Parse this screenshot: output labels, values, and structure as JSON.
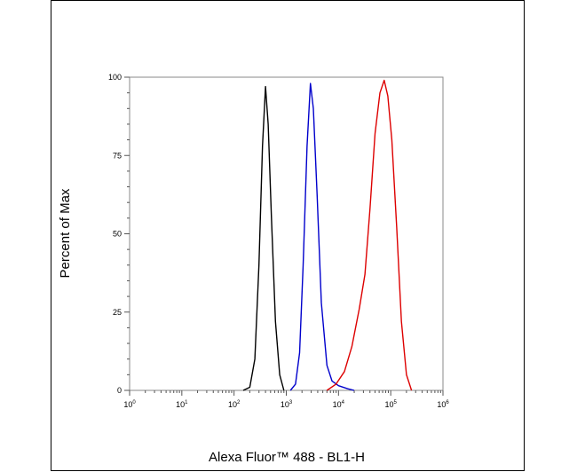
{
  "chart_data": {
    "type": "line",
    "title": "",
    "xlabel": "Alexa Fluor™ 488 - BL1-H",
    "ylabel": "Percent of Max",
    "x_scale": "log",
    "xlim": [
      1,
      1000000
    ],
    "ylim": [
      0,
      100
    ],
    "x_tick_labels": [
      {
        "value": 1,
        "base": "10",
        "exp": "0"
      },
      {
        "value": 10,
        "base": "10",
        "exp": "1"
      },
      {
        "value": 100,
        "base": "10",
        "exp": "2"
      },
      {
        "value": 1000,
        "base": "10",
        "exp": "3"
      },
      {
        "value": 10000,
        "base": "10",
        "exp": "4"
      },
      {
        "value": 100000,
        "base": "10",
        "exp": "5"
      },
      {
        "value": 1000000,
        "base": "10",
        "exp": "6"
      }
    ],
    "y_ticks": [
      0,
      25,
      50,
      75,
      100
    ],
    "grid": false,
    "legend": "none",
    "series": [
      {
        "color": "#000000",
        "points": [
          [
            150,
            0
          ],
          [
            200,
            1
          ],
          [
            250,
            10
          ],
          [
            300,
            40
          ],
          [
            350,
            78
          ],
          [
            400,
            97
          ],
          [
            450,
            85
          ],
          [
            520,
            55
          ],
          [
            620,
            22
          ],
          [
            750,
            5
          ],
          [
            900,
            0
          ]
        ]
      },
      {
        "color": "#0000cc",
        "points": [
          [
            1200,
            0
          ],
          [
            1500,
            2
          ],
          [
            1800,
            12
          ],
          [
            2100,
            40
          ],
          [
            2500,
            78
          ],
          [
            2900,
            98
          ],
          [
            3300,
            90
          ],
          [
            3900,
            62
          ],
          [
            4700,
            28
          ],
          [
            6000,
            8
          ],
          [
            7500,
            3
          ],
          [
            10000,
            1.5
          ],
          [
            15000,
            0.5
          ],
          [
            20000,
            0
          ]
        ]
      },
      {
        "color": "#dd0000",
        "points": [
          [
            6000,
            0
          ],
          [
            9000,
            2
          ],
          [
            13000,
            6
          ],
          [
            18000,
            14
          ],
          [
            25000,
            26
          ],
          [
            32000,
            37
          ],
          [
            40000,
            58
          ],
          [
            50000,
            82
          ],
          [
            62000,
            95
          ],
          [
            75000,
            99
          ],
          [
            88000,
            94
          ],
          [
            105000,
            80
          ],
          [
            130000,
            52
          ],
          [
            160000,
            22
          ],
          [
            200000,
            5
          ],
          [
            250000,
            0
          ]
        ]
      }
    ]
  }
}
